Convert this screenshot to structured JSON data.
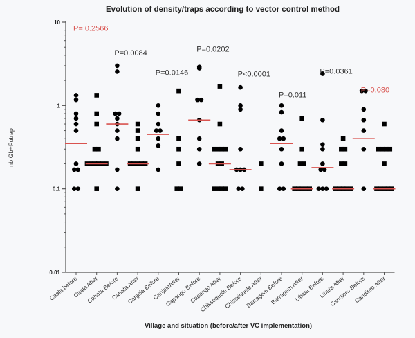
{
  "chart_data": {
    "type": "scatter",
    "title": "Evolution of density/traps according to vector control method",
    "xlabel": "Village and situation (before/after VC implementation)",
    "ylabel": "nb Gb+Futrap",
    "yscale": "log",
    "ylim": [
      0.01,
      10
    ],
    "yticks": [
      {
        "value": 10,
        "label": "10"
      },
      {
        "value": 1,
        "label": "1"
      },
      {
        "value": 0.1,
        "label": "0.1"
      },
      {
        "value": 0.01,
        "label": "0.01"
      }
    ],
    "grid": false,
    "median_color": "#d9534f",
    "point_color": "#000000",
    "categories": [
      {
        "label": "Caala before",
        "marker": "circle",
        "median": 0.35,
        "values": [
          1.33,
          1.17,
          0.8,
          0.7,
          0.6,
          0.5,
          0.2,
          0.17,
          0.17,
          0.1,
          0.1
        ]
      },
      {
        "label": "Caala After",
        "marker": "square",
        "median": 0.2,
        "values": [
          1.33,
          0.8,
          0.6,
          0.3,
          0.3,
          0.2,
          0.2,
          0.2,
          0.2,
          0.2,
          0.2,
          0.1
        ]
      },
      {
        "label": "Cahata Before",
        "marker": "circle",
        "median": 0.6,
        "values": [
          3.0,
          2.55,
          0.8,
          0.8,
          0.7,
          0.6,
          0.5,
          0.4,
          0.17,
          0.1
        ]
      },
      {
        "label": "Cahata After",
        "marker": "square",
        "median": 0.2,
        "values": [
          0.6,
          0.5,
          0.4,
          0.3,
          0.2,
          0.2,
          0.2,
          0.2,
          0.2,
          0.1
        ]
      },
      {
        "label": "Canjala Before",
        "marker": "circle",
        "median": 0.45,
        "values": [
          1.0,
          0.8,
          0.6,
          0.5,
          0.5,
          0.4,
          0.33,
          0.17
        ]
      },
      {
        "label": "CanjalaAfter",
        "marker": "square",
        "median": null,
        "values": [
          1.5,
          0.4,
          0.3,
          0.2,
          0.1,
          0.1
        ]
      },
      {
        "label": "Capango Before",
        "marker": "circle",
        "median": 0.67,
        "values": [
          2.9,
          2.8,
          1.17,
          1.17,
          0.67,
          0.4,
          0.3,
          0.2
        ]
      },
      {
        "label": "Capango After",
        "marker": "square",
        "median": 0.2,
        "values": [
          1.7,
          0.6,
          0.3,
          0.3,
          0.3,
          0.3,
          0.2,
          0.2,
          0.1,
          0.1,
          0.1,
          0.1
        ]
      },
      {
        "label": "Chissequele Before",
        "marker": "circle",
        "median": 0.17,
        "values": [
          1.65,
          1.0,
          0.9,
          0.3,
          0.17,
          0.17,
          0.17,
          0.1,
          0.1
        ]
      },
      {
        "label": "Chisséquele After",
        "marker": "square",
        "median": null,
        "values": [
          0.2,
          0.1
        ]
      },
      {
        "label": "Barragem Before",
        "marker": "circle",
        "median": 0.35,
        "values": [
          1.0,
          0.83,
          0.5,
          0.4,
          0.4,
          0.3,
          0.2,
          0.1,
          0.1
        ]
      },
      {
        "label": "Barragem After",
        "marker": "square",
        "median": 0.1,
        "values": [
          0.7,
          0.3,
          0.2,
          0.2,
          0.1,
          0.1,
          0.1,
          0.1,
          0.1
        ]
      },
      {
        "label": "Libata Before",
        "marker": "circle",
        "median": 0.18,
        "values": [
          2.4,
          0.67,
          0.34,
          0.3,
          0.2,
          0.17,
          0.17,
          0.1,
          0.1,
          0.1
        ]
      },
      {
        "label": "Libata After",
        "marker": "square",
        "median": 0.1,
        "values": [
          0.4,
          0.3,
          0.3,
          0.2,
          0.2,
          0.1,
          0.1,
          0.1,
          0.1,
          0.1
        ]
      },
      {
        "label": "Candiero Before",
        "marker": "circle",
        "median": 0.4,
        "values": [
          1.5,
          1.5,
          0.9,
          0.67,
          0.5,
          0.3,
          0.1
        ]
      },
      {
        "label": "Candiero After",
        "marker": "square",
        "median": 0.1,
        "values": [
          0.6,
          0.3,
          0.3,
          0.3,
          0.3,
          0.2,
          0.1,
          0.1,
          0.1,
          0.1,
          0.1
        ]
      }
    ],
    "annotations": [
      {
        "text": "P= 0.2566",
        "category_index": 0,
        "value": 8.5,
        "color": "red"
      },
      {
        "text": "P=0.0084",
        "category_index": 2,
        "value": 4.3,
        "color": "dark"
      },
      {
        "text": "P=0.0146",
        "category_index": 4,
        "value": 2.5,
        "color": "dark"
      },
      {
        "text": "P=0.0202",
        "category_index": 6,
        "value": 4.8,
        "color": "dark"
      },
      {
        "text": "P<0.0001",
        "category_index": 8,
        "value": 2.4,
        "color": "dark"
      },
      {
        "text": "P=0.011",
        "category_index": 10,
        "value": 1.35,
        "color": "dark"
      },
      {
        "text": "P=0.0361",
        "category_index": 12,
        "value": 2.6,
        "color": "dark"
      },
      {
        "text": "P=0.080",
        "category_index": 14,
        "value": 1.55,
        "color": "red"
      }
    ]
  }
}
